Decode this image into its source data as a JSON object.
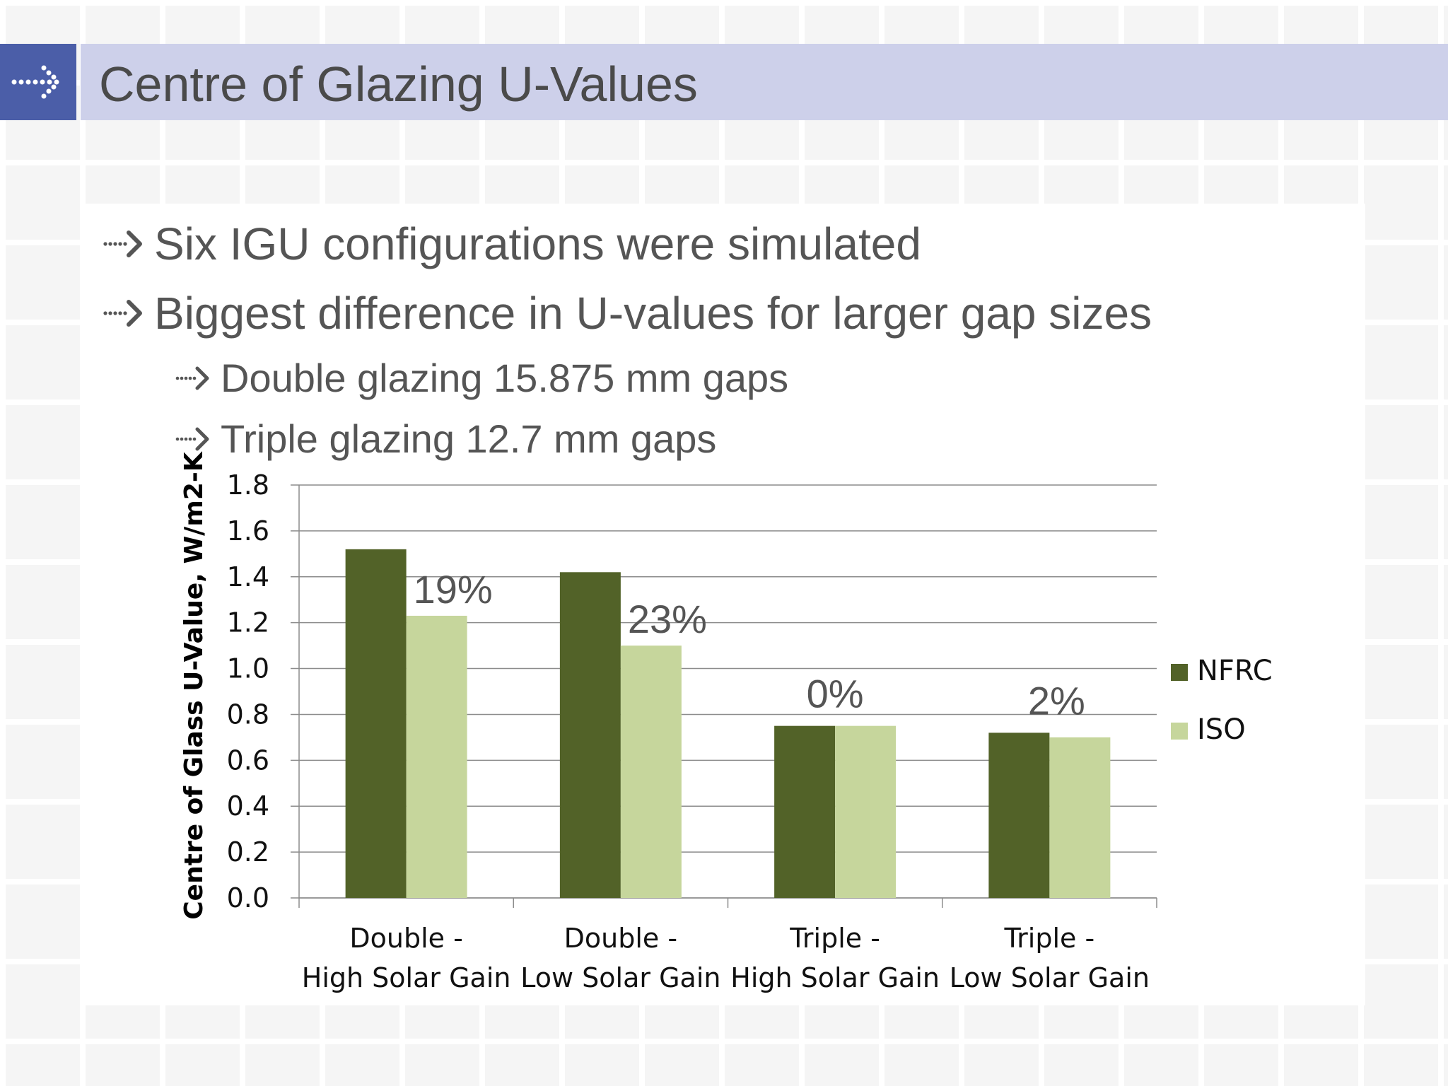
{
  "slide": {
    "title": "Centre of Glazing U-Values",
    "bullets": [
      {
        "text": "Six IGU configurations were simulated",
        "level": 1
      },
      {
        "text": "Biggest difference in U-values for larger gap sizes",
        "level": 1
      },
      {
        "text": "Double glazing 15.875 mm gaps",
        "level": 2
      },
      {
        "text": "Triple glazing 12.7 mm gaps",
        "level": 2
      }
    ],
    "icons": {
      "header": "dotted-arrow-icon",
      "bullet": "dotted-arrow-icon"
    },
    "colors": {
      "header_box": "#4b5ea8",
      "header_band": "#cdd0ea"
    }
  },
  "chart_data": {
    "type": "bar",
    "title": "",
    "xlabel": "",
    "ylabel": "Centre of Glass U-Value, W/m2-K",
    "ylim": [
      0,
      1.8
    ],
    "yticks": [
      "0.0",
      "0.2",
      "0.4",
      "0.6",
      "0.8",
      "1.0",
      "1.2",
      "1.4",
      "1.6",
      "1.8"
    ],
    "categories": [
      [
        "Double -",
        "High Solar Gain"
      ],
      [
        "Double -",
        "Low Solar Gain"
      ],
      [
        "Triple -",
        "High Solar Gain"
      ],
      [
        "Triple -",
        "Low Solar Gain"
      ]
    ],
    "series": [
      {
        "name": "NFRC",
        "color": "#526228",
        "values": [
          1.52,
          1.42,
          0.75,
          0.72
        ]
      },
      {
        "name": "ISO",
        "color": "#c6d69c",
        "values": [
          1.23,
          1.1,
          0.75,
          0.7
        ]
      }
    ],
    "annotations": [
      "19%",
      "23%",
      "0%",
      "2%"
    ],
    "grid": true,
    "legend_position": "right"
  }
}
